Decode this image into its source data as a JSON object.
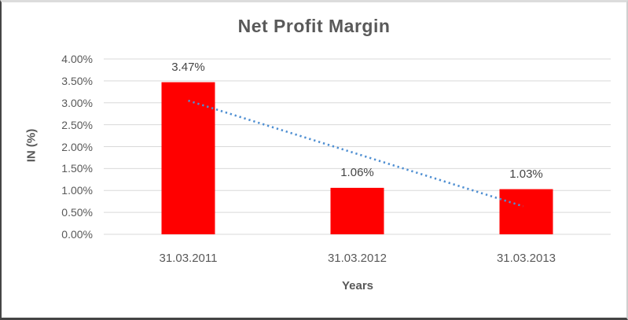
{
  "chart_data": {
    "type": "bar",
    "title": "Net Profit Margin",
    "xlabel": "Years",
    "ylabel": "IN (%)",
    "categories": [
      "31.03.2011",
      "31.03.2012",
      "31.03.2013"
    ],
    "values": [
      3.47,
      1.06,
      1.03
    ],
    "data_labels": [
      "3.47%",
      "1.06%",
      "1.03%"
    ],
    "ylim": [
      0,
      4
    ],
    "ytick_step": 0.5,
    "ytick_labels_top_to_bottom": [
      "4.00%",
      "3.50%",
      "3.00%",
      "2.50%",
      "2.00%",
      "1.50%",
      "1.00%",
      "0.50%",
      "0.00%"
    ],
    "grid": true,
    "legend": "none",
    "trendline": {
      "type": "linear",
      "style": "dotted",
      "start_value": 3.05,
      "end_value": 0.64
    },
    "colors": {
      "bar": "#ff0000",
      "trendline": "#4f8fd2",
      "gridline": "#d9d9d9",
      "tick_text": "#595959",
      "data_label_text": "#444444",
      "title_text": "#595959"
    }
  }
}
